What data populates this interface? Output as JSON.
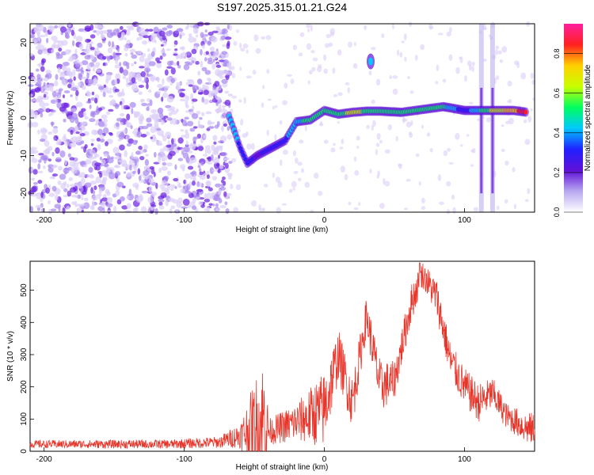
{
  "title": "S197.2025.315.01.21.G24",
  "chart_data": [
    {
      "type": "heatmap",
      "xlabel": "Height of straight line (km)",
      "ylabel": "Frequency (Hz)",
      "xlim": [
        -210,
        150
      ],
      "ylim": [
        -25,
        25
      ],
      "xticks": [
        -200,
        -100,
        0,
        100
      ],
      "yticks": [
        -20,
        -10,
        0,
        10,
        20
      ],
      "colorbar": {
        "label": "Normalized spectral amplitude",
        "range": [
          0,
          0.95
        ],
        "ticks": [
          0.0,
          0.2,
          0.4,
          0.6,
          0.8
        ],
        "colors": [
          "#ffffff",
          "#b8a8f0",
          "#6010d8",
          "#2020ff",
          "#00c8ff",
          "#00ff60",
          "#c8ff00",
          "#ffd000",
          "#ff2020",
          "#ff20a0"
        ]
      },
      "features": {
        "noise_region_x": [
          -210,
          -75
        ],
        "ridge": [
          {
            "x": -68,
            "f": 0.5,
            "a": 0.45
          },
          {
            "x": -60,
            "f": -8,
            "a": 0.35
          },
          {
            "x": -55,
            "f": -12,
            "a": 0.3
          },
          {
            "x": -48,
            "f": -10,
            "a": 0.25
          },
          {
            "x": -38,
            "f": -8,
            "a": 0.3
          },
          {
            "x": -28,
            "f": -6,
            "a": 0.35
          },
          {
            "x": -20,
            "f": -1,
            "a": 0.45
          },
          {
            "x": -10,
            "f": -0.5,
            "a": 0.5
          },
          {
            "x": 0,
            "f": 2,
            "a": 0.5
          },
          {
            "x": 10,
            "f": 1,
            "a": 0.5
          },
          {
            "x": 20,
            "f": 1.5,
            "a": 0.65
          },
          {
            "x": 30,
            "f": 1.8,
            "a": 0.55
          },
          {
            "x": 40,
            "f": 1.8,
            "a": 0.5
          },
          {
            "x": 55,
            "f": 1.5,
            "a": 0.5
          },
          {
            "x": 65,
            "f": 2,
            "a": 0.5
          },
          {
            "x": 75,
            "f": 2.5,
            "a": 0.55
          },
          {
            "x": 85,
            "f": 3,
            "a": 0.5
          },
          {
            "x": 100,
            "f": 2,
            "a": 0.3
          },
          {
            "x": 120,
            "f": 2,
            "a": 0.6
          },
          {
            "x": 135,
            "f": 2,
            "a": 0.75
          },
          {
            "x": 145,
            "f": 1.5,
            "a": 0.9
          }
        ],
        "blob": {
          "x": 33,
          "f": 15,
          "a": 0.4
        },
        "vertical_stripes_x": [
          112,
          120
        ]
      }
    },
    {
      "type": "line",
      "xlabel": "Height of straight line (km)",
      "ylabel": "SNR (10 * v/v)",
      "xlim": [
        -210,
        150
      ],
      "ylim": [
        0,
        590
      ],
      "xticks": [
        -200,
        -100,
        0,
        100
      ],
      "yticks": [
        0,
        100,
        200,
        300,
        400,
        500
      ],
      "color": "#e8352a",
      "envelope": [
        {
          "x": -210,
          "base": 22,
          "amp": 12
        },
        {
          "x": -110,
          "base": 22,
          "amp": 14
        },
        {
          "x": -75,
          "base": 28,
          "amp": 18
        },
        {
          "x": -60,
          "base": 50,
          "amp": 40
        },
        {
          "x": -42,
          "base": 90,
          "amp": 230
        },
        {
          "x": -40,
          "base": 60,
          "amp": 40
        },
        {
          "x": -20,
          "base": 90,
          "amp": 60
        },
        {
          "x": 0,
          "base": 130,
          "amp": 120
        },
        {
          "x": 10,
          "base": 300,
          "amp": 80
        },
        {
          "x": 20,
          "base": 150,
          "amp": 80
        },
        {
          "x": 30,
          "base": 420,
          "amp": 60
        },
        {
          "x": 40,
          "base": 200,
          "amp": 80
        },
        {
          "x": 50,
          "base": 220,
          "amp": 60
        },
        {
          "x": 62,
          "base": 460,
          "amp": 60
        },
        {
          "x": 70,
          "base": 550,
          "amp": 40
        },
        {
          "x": 80,
          "base": 480,
          "amp": 60
        },
        {
          "x": 90,
          "base": 280,
          "amp": 60
        },
        {
          "x": 100,
          "base": 200,
          "amp": 60
        },
        {
          "x": 110,
          "base": 150,
          "amp": 60
        },
        {
          "x": 120,
          "base": 180,
          "amp": 50
        },
        {
          "x": 130,
          "base": 110,
          "amp": 40
        },
        {
          "x": 145,
          "base": 70,
          "amp": 50
        }
      ],
      "peak": {
        "x": 68,
        "value": 585
      }
    }
  ]
}
